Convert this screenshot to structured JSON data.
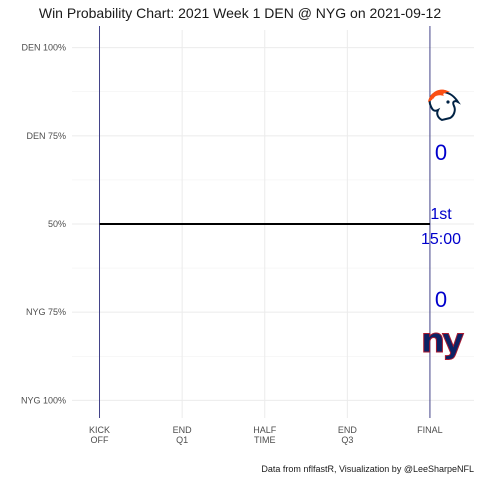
{
  "chart_data": {
    "type": "line",
    "title": "Win Probability Chart: 2021 Week 1 DEN @ NYG on 2021-09-12",
    "caption": "Data from nflfastR, Visualization by @LeeSharpeNFL",
    "y_ticks": [
      {
        "value": 1.0,
        "label": "DEN 100%"
      },
      {
        "value": 0.75,
        "label": "DEN 75%"
      },
      {
        "value": 0.5,
        "label": "50%"
      },
      {
        "value": 0.25,
        "label": "NYG 75%"
      },
      {
        "value": 0.0,
        "label": "NYG 100%"
      }
    ],
    "x_ticks": [
      {
        "value": 0,
        "lines": [
          "KICK",
          "OFF"
        ]
      },
      {
        "value": 15,
        "lines": [
          "END",
          "Q1"
        ]
      },
      {
        "value": 30,
        "lines": [
          "HALF",
          "TIME"
        ]
      },
      {
        "value": 45,
        "lines": [
          "END",
          "Q3"
        ]
      },
      {
        "value": 60,
        "lines": [
          "FINAL"
        ]
      }
    ],
    "xlim": [
      -5,
      68
    ],
    "ylim": [
      -0.05,
      1.05
    ],
    "series": [
      {
        "x": [
          0,
          60
        ],
        "y": [
          0.5,
          0.5
        ]
      }
    ],
    "vlines": [
      0,
      60
    ],
    "grid": true,
    "teams": {
      "home": {
        "abbr": "NYG",
        "score": "0",
        "color": "#0B2265",
        "accent": "#A71930"
      },
      "away": {
        "abbr": "DEN",
        "score": "0",
        "color": "#FB4F14",
        "accent": "#002244"
      }
    },
    "game_status": {
      "quarter": "1st",
      "clock": "15:00"
    },
    "line_color": "#000000",
    "vline_color": "#191970",
    "text_color": "#0000cc"
  }
}
